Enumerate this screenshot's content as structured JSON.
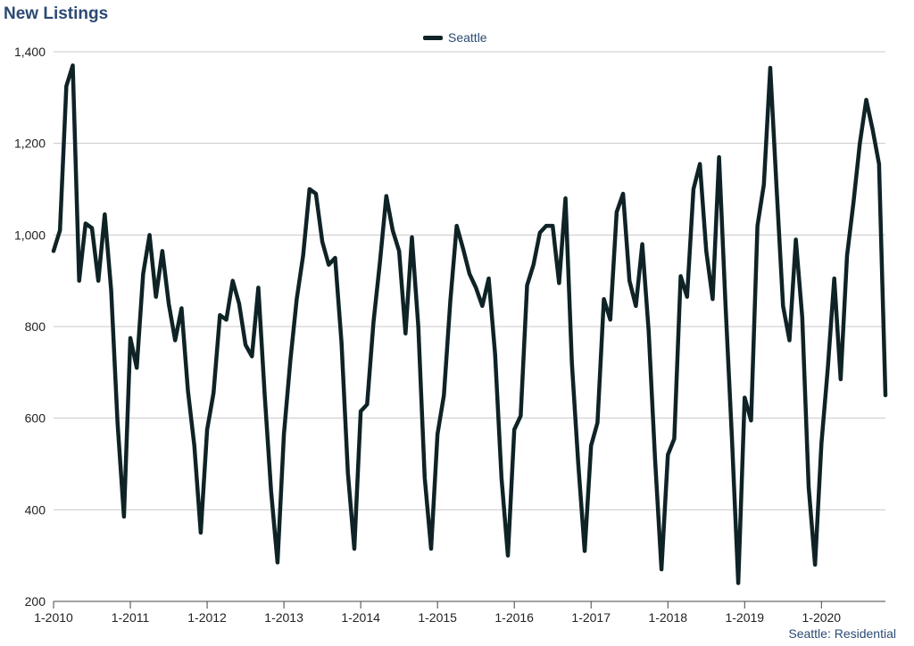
{
  "title": "New Listings",
  "footer": "Seattle: Residential",
  "colors": {
    "title": "#2b4a73",
    "line": "#0f2326",
    "grid": "#c8c8c8",
    "axis_text": "#222222"
  },
  "chart_data": {
    "type": "line",
    "title": "New Listings",
    "xlabel": "",
    "ylabel": "",
    "ylim": [
      200,
      1400
    ],
    "yticks": [
      200,
      400,
      600,
      800,
      1000,
      1200,
      1400
    ],
    "ytick_labels": [
      "200",
      "400",
      "600",
      "800",
      "1,000",
      "1,200",
      "1,400"
    ],
    "xticks": [
      {
        "label": "1-2010",
        "index": 0
      },
      {
        "label": "1-2011",
        "index": 12
      },
      {
        "label": "1-2012",
        "index": 24
      },
      {
        "label": "1-2013",
        "index": 36
      },
      {
        "label": "1-2014",
        "index": 48
      },
      {
        "label": "1-2015",
        "index": 60
      },
      {
        "label": "1-2016",
        "index": 72
      },
      {
        "label": "1-2017",
        "index": 84
      },
      {
        "label": "1-2018",
        "index": 96
      },
      {
        "label": "1-2019",
        "index": 108
      },
      {
        "label": "1-2020",
        "index": 120
      }
    ],
    "legend": "top-center",
    "grid": true,
    "series": [
      {
        "name": "Seattle",
        "color": "#0f2326",
        "values": [
          965,
          1010,
          1325,
          1370,
          900,
          1025,
          1015,
          900,
          1045,
          880,
          590,
          385,
          775,
          710,
          915,
          1000,
          865,
          965,
          850,
          770,
          840,
          660,
          540,
          350,
          575,
          655,
          825,
          815,
          900,
          850,
          760,
          735,
          885,
          650,
          440,
          285,
          565,
          725,
          860,
          955,
          1100,
          1090,
          985,
          935,
          950,
          765,
          480,
          315,
          615,
          630,
          810,
          940,
          1085,
          1010,
          965,
          785,
          995,
          800,
          470,
          315,
          565,
          650,
          855,
          1020,
          970,
          915,
          885,
          845,
          905,
          740,
          470,
          300,
          575,
          605,
          890,
          935,
          1005,
          1020,
          1020,
          895,
          1080,
          720,
          500,
          310,
          540,
          590,
          860,
          815,
          1050,
          1090,
          900,
          845,
          980,
          790,
          510,
          270,
          520,
          555,
          910,
          865,
          1100,
          1155,
          965,
          860,
          1170,
          850,
          560,
          240,
          645,
          595,
          1020,
          1110,
          1365,
          1100,
          845,
          770,
          990,
          820,
          450,
          280,
          545,
          710,
          905,
          685,
          955,
          1070,
          1200,
          1295,
          1230,
          1155,
          650
        ]
      }
    ]
  }
}
